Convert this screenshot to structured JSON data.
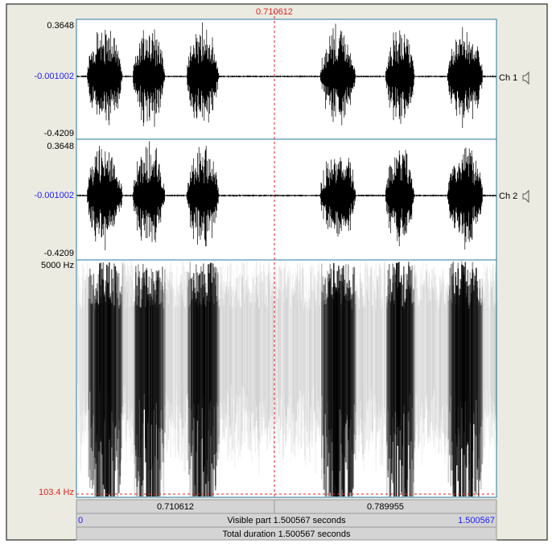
{
  "cursor": {
    "time": "0.710612"
  },
  "channels": [
    {
      "max": "0.3648",
      "mid": "-0.001002",
      "min": "-0.4209",
      "name": "Ch 1"
    },
    {
      "max": "0.3648",
      "mid": "-0.001002",
      "min": "-0.4209",
      "name": "Ch 2"
    }
  ],
  "spectrogram": {
    "top": "5000 Hz",
    "bottom": "103.4 Hz"
  },
  "footer": {
    "left_time": "0.710612",
    "right_time": "0.789955",
    "start": "0",
    "visible": "Visible part 1.500567 seconds",
    "end": "1.500567",
    "total": "Total duration 1.500567 seconds"
  }
}
